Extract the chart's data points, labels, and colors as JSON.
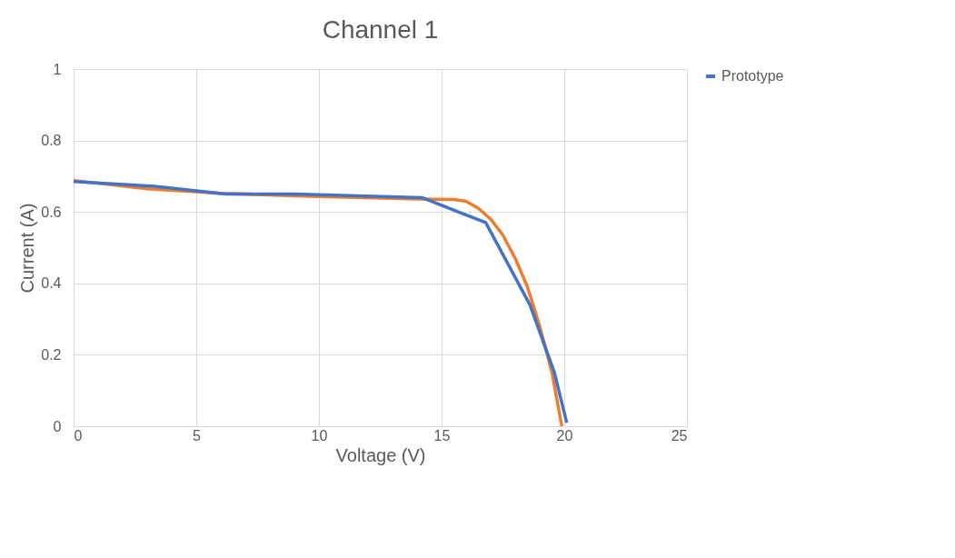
{
  "chart_data": {
    "type": "line",
    "title": "Channel 1",
    "xlabel": "Voltage (V)",
    "ylabel": "Current (A)",
    "xlim": [
      0,
      25
    ],
    "xticks": [
      0,
      5,
      10,
      15,
      20,
      25
    ],
    "ylim": [
      0,
      1
    ],
    "yticks": [
      0,
      0.2,
      0.4,
      0.6,
      0.8,
      1
    ],
    "grid": true,
    "legend": "right",
    "marker": "none",
    "line_style": "solid",
    "series": [
      {
        "name": "Prototype",
        "color": "#4472c4",
        "x": [
          0,
          3.3,
          6.2,
          9,
          14.2,
          16.8,
          18.6,
          19.6,
          20.1
        ],
        "values": [
          0.685,
          0.672,
          0.65,
          0.65,
          0.64,
          0.57,
          0.34,
          0.15,
          0.01
        ]
      },
      {
        "color": "#ed7d31",
        "x": [
          0,
          3,
          6,
          10,
          14,
          15.5,
          16,
          16.5,
          17,
          17.5,
          18,
          18.5,
          19,
          19.5,
          19.9
        ],
        "values": [
          0.688,
          0.665,
          0.652,
          0.643,
          0.636,
          0.635,
          0.63,
          0.61,
          0.58,
          0.535,
          0.47,
          0.39,
          0.28,
          0.15,
          0
        ]
      }
    ]
  }
}
